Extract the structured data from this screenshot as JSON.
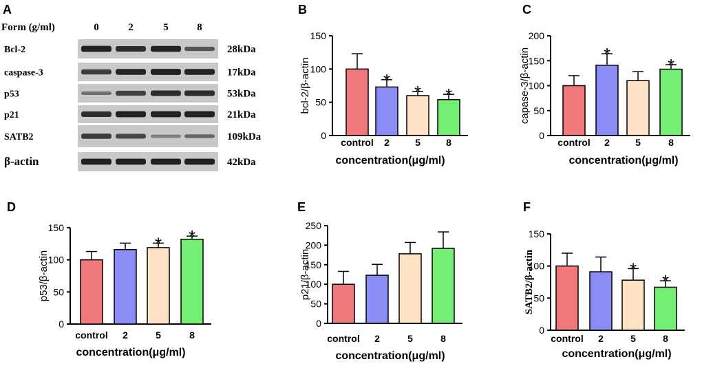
{
  "western_blot": {
    "panel_letter": "A",
    "header_label": "Form (g/ml)",
    "lanes": [
      "0",
      "2",
      "5",
      "8"
    ],
    "rows": [
      {
        "protein": "Bcl-2",
        "kda": "28kDa",
        "intensities": [
          0.95,
          0.85,
          0.92,
          0.55
        ]
      },
      {
        "protein": "caspase-3",
        "kda": "17kDa",
        "intensities": [
          0.75,
          0.92,
          0.95,
          0.92
        ]
      },
      {
        "protein": "p53",
        "kda": "53kDa",
        "intensities": [
          0.35,
          0.7,
          0.85,
          0.85
        ]
      },
      {
        "protein": "p21",
        "kda": "21kDa",
        "intensities": [
          0.85,
          0.95,
          0.95,
          0.95
        ]
      },
      {
        "protein": "SATB2",
        "kda": "109kDa",
        "intensities": [
          0.75,
          0.65,
          0.25,
          0.4
        ]
      },
      {
        "protein": "β-actin",
        "kda": "42kDa",
        "intensities": [
          0.95,
          0.95,
          0.95,
          0.95
        ]
      }
    ]
  },
  "chart_data": [
    {
      "panel": "B",
      "type": "bar",
      "title": "",
      "categories": [
        "control",
        "2",
        "5",
        "8"
      ],
      "values": [
        100,
        73,
        60,
        54
      ],
      "errors": [
        23,
        11,
        6,
        8
      ],
      "significance": [
        "",
        "*",
        "*",
        "*"
      ],
      "xlabel": "concentration(μg/ml)",
      "ylabel": "bcl-2/β-actin",
      "ylim": [
        0,
        150
      ],
      "yticks": [
        "0",
        "50",
        "100",
        "150"
      ]
    },
    {
      "panel": "C",
      "type": "bar",
      "title": "",
      "categories": [
        "control",
        "2",
        "5",
        "8"
      ],
      "values": [
        100,
        141,
        110,
        133
      ],
      "errors": [
        20,
        23,
        18,
        9
      ],
      "significance": [
        "",
        "*",
        "",
        "*"
      ],
      "xlabel": "concentration(μg/ml)",
      "ylabel": "capase-3/β-actin",
      "ylim": [
        0,
        200
      ],
      "yticks": [
        "0",
        "50",
        "100",
        "150",
        "200"
      ]
    },
    {
      "panel": "D",
      "type": "bar",
      "title": "",
      "categories": [
        "control",
        "2",
        "5",
        "8"
      ],
      "values": [
        100,
        116,
        119,
        132
      ],
      "errors": [
        13,
        10,
        7,
        5
      ],
      "significance": [
        "",
        "",
        "*",
        "*"
      ],
      "xlabel": "concentration(μg/ml)",
      "ylabel": "p53/β-actin",
      "ylim": [
        0,
        150
      ],
      "yticks": [
        "0",
        "50",
        "100",
        "150"
      ]
    },
    {
      "panel": "E",
      "type": "bar",
      "title": "",
      "categories": [
        "control",
        "2",
        "5",
        "8"
      ],
      "values": [
        100,
        123,
        178,
        192
      ],
      "errors": [
        33,
        28,
        29,
        42
      ],
      "significance": [
        "",
        "",
        "",
        ""
      ],
      "xlabel": "concentration(μg/ml)",
      "ylabel": "p21/β-actin",
      "ylim": [
        0,
        250
      ],
      "yticks": [
        "0",
        "50",
        "100",
        "150",
        "200",
        "250"
      ]
    },
    {
      "panel": "F",
      "type": "bar",
      "title": "",
      "categories": [
        "control",
        "2",
        "5",
        "8"
      ],
      "values": [
        100,
        91,
        78,
        67
      ],
      "errors": [
        20,
        23,
        18,
        10
      ],
      "significance": [
        "",
        "",
        "*",
        "*"
      ],
      "xlabel": "concentration(μg/ml)",
      "ylabel": "SATB2/β-actin",
      "ylim": [
        0,
        150
      ],
      "yticks": [
        "0",
        "50",
        "100",
        "150"
      ]
    }
  ],
  "colors": {
    "bars": [
      "#f2797b",
      "#8c8cf7",
      "#fde2c4",
      "#74ef74"
    ],
    "axis": "#000000",
    "blot_background": "#c8c8c8",
    "band": "#1a1a1a"
  }
}
